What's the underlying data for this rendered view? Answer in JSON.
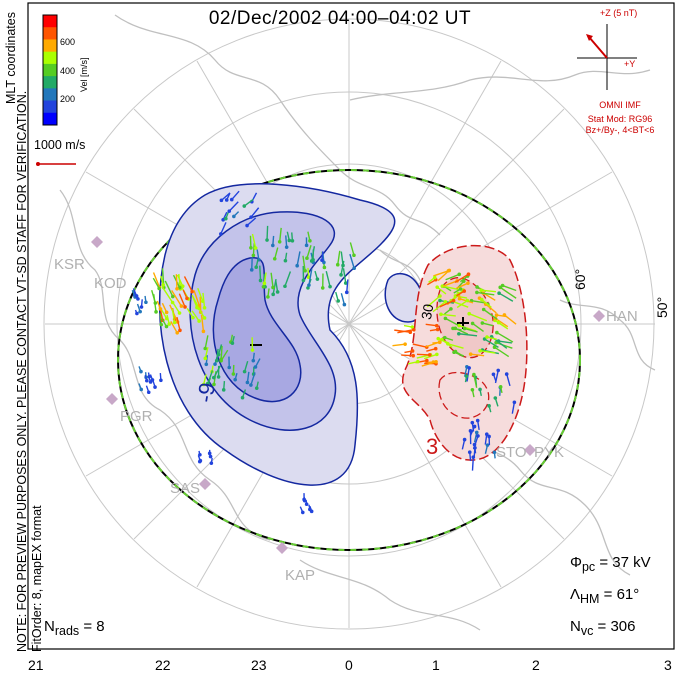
{
  "title": "02/Dec/2002 04:00–04:02 UT",
  "side_note": "NOTE: FOR PREVIEW PURPOSES ONLY. PLEASE CONTACT VT-SD STAFF FOR VERIFICATION.",
  "side_note_2": "FitOrder: 8, mapEX format",
  "coordinates_label": "MLT coordinates",
  "velocity_scale": {
    "label": "Vel [m/s]",
    "ticks": [
      "600",
      "400",
      "200"
    ],
    "colors": [
      "#ff0000",
      "#ff5500",
      "#ffaa00",
      "#aaff00",
      "#55cc22",
      "#22aa66",
      "#2277bb",
      "#2244dd",
      "#0000ff"
    ]
  },
  "reference_vector": "1000 m/s",
  "imf": {
    "axis_z": "+Z (5 nT)",
    "axis_y": "+Y",
    "source": "OMNI IMF",
    "model": "Stat Mod: RG96",
    "condition": "Bz+/By-, 4<BT<6"
  },
  "stations": [
    "KSR",
    "KOD",
    "PGR",
    "SAS",
    "KAP",
    "HAN",
    "STO",
    "PYK"
  ],
  "latitude_labels": [
    "60°",
    "50°"
  ],
  "contour_labels": [
    "-9",
    "30",
    "3"
  ],
  "stats": {
    "n_rads": "N<sub>rads</sub> = 8",
    "phi_pc": "Φ<sub>pc</sub> = 37 kV",
    "lambda_hm": "Λ<sub>HM</sub> = 61°",
    "n_vc": "N<sub>vc</sub> = 306"
  },
  "mlt_axis": [
    "21",
    "22",
    "23",
    "0",
    "1",
    "2",
    "3"
  ],
  "colors": {
    "negative_cell_fill": "#b4b4e6",
    "negative_contour": "#1428a0",
    "positive_cell_fill": "#f0c8c8",
    "positive_contour": "#cc1a1a",
    "boundary_dash": "#66cc33",
    "coastline": "#c0c0c0"
  }
}
